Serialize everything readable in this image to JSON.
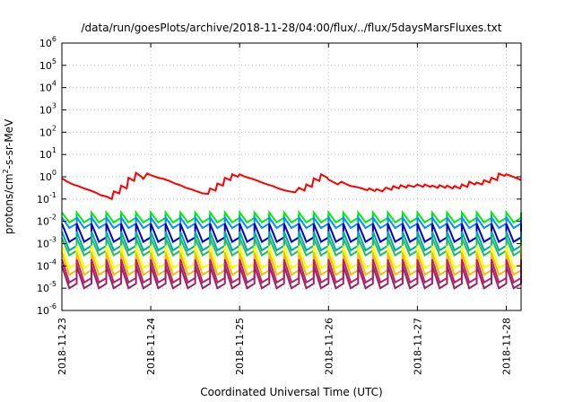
{
  "chart_data": {
    "type": "line",
    "title": "/data/run/goesPlots/archive/2018-11-28/04:00/flux/../flux/5daysMarsFluxes.txt",
    "xlabel": "Coordinated Universal Time (UTC)",
    "ylabel": {
      "prefix": "protons/cm",
      "superscript": "2",
      "suffix": "-s-sr-MeV"
    },
    "yscale": "log",
    "ylim_exponents": [
      -6,
      6
    ],
    "y_tick_labels": [
      {
        "base": "10",
        "exp": "-6"
      },
      {
        "base": "10",
        "exp": "-5"
      },
      {
        "base": "10",
        "exp": "-4"
      },
      {
        "base": "10",
        "exp": "-3"
      },
      {
        "base": "10",
        "exp": "-2"
      },
      {
        "base": "10",
        "exp": "-1"
      },
      {
        "base": "10",
        "exp": "0"
      },
      {
        "base": "10",
        "exp": "1"
      },
      {
        "base": "10",
        "exp": "2"
      },
      {
        "base": "10",
        "exp": "3"
      },
      {
        "base": "10",
        "exp": "4"
      },
      {
        "base": "10",
        "exp": "5"
      },
      {
        "base": "10",
        "exp": "6"
      }
    ],
    "xlim_days": [
      "2018-11-23 00:00",
      "2018-11-28 04:00"
    ],
    "x_tick_labels": [
      "2018-11-23",
      "2018-11-24",
      "2018-11-25",
      "2018-11-26",
      "2018-11-27",
      "2018-11-28"
    ],
    "grid": true,
    "series": [
      {
        "color": "#ff0000",
        "sawtooth": false,
        "points": [
          [
            "2018-11-23 00:00",
            0.85
          ],
          [
            "2018-11-23 01:30",
            0.6
          ],
          [
            "2018-11-23 03:00",
            0.45
          ],
          [
            "2018-11-23 04:30",
            0.38
          ],
          [
            "2018-11-23 06:00",
            0.3
          ],
          [
            "2018-11-23 07:30",
            0.25
          ],
          [
            "2018-11-23 09:00",
            0.2
          ],
          [
            "2018-11-23 10:30",
            0.15
          ],
          [
            "2018-11-23 12:00",
            0.13
          ],
          [
            "2018-11-23 13:30",
            0.1
          ],
          [
            "2018-11-23 14:00",
            0.22
          ],
          [
            "2018-11-23 15:30",
            0.18
          ],
          [
            "2018-11-23 16:00",
            0.4
          ],
          [
            "2018-11-23 17:30",
            0.3
          ],
          [
            "2018-11-23 18:00",
            0.9
          ],
          [
            "2018-11-23 19:30",
            0.65
          ],
          [
            "2018-11-23 20:00",
            1.5
          ],
          [
            "2018-11-23 21:30",
            1.0
          ],
          [
            "2018-11-23 22:00",
            0.8
          ],
          [
            "2018-11-23 23:00",
            1.4
          ],
          [
            "2018-11-24 00:30",
            1.1
          ],
          [
            "2018-11-24 02:00",
            0.9
          ],
          [
            "2018-11-24 03:30",
            0.8
          ],
          [
            "2018-11-24 05:00",
            0.65
          ],
          [
            "2018-11-24 06:30",
            0.5
          ],
          [
            "2018-11-24 08:00",
            0.42
          ],
          [
            "2018-11-24 09:30",
            0.32
          ],
          [
            "2018-11-24 11:00",
            0.27
          ],
          [
            "2018-11-24 12:30",
            0.22
          ],
          [
            "2018-11-24 14:00",
            0.18
          ],
          [
            "2018-11-24 15:30",
            0.17
          ],
          [
            "2018-11-24 16:00",
            0.3
          ],
          [
            "2018-11-24 17:30",
            0.24
          ],
          [
            "2018-11-24 18:00",
            0.5
          ],
          [
            "2018-11-24 19:30",
            0.4
          ],
          [
            "2018-11-24 20:00",
            0.9
          ],
          [
            "2018-11-24 21:30",
            0.7
          ],
          [
            "2018-11-24 22:00",
            1.3
          ],
          [
            "2018-11-24 23:30",
            1.0
          ],
          [
            "2018-11-25 00:00",
            1.3
          ],
          [
            "2018-11-25 01:30",
            1.0
          ],
          [
            "2018-11-25 03:00",
            0.85
          ],
          [
            "2018-11-25 04:30",
            0.7
          ],
          [
            "2018-11-25 06:00",
            0.55
          ],
          [
            "2018-11-25 07:30",
            0.45
          ],
          [
            "2018-11-25 09:00",
            0.38
          ],
          [
            "2018-11-25 10:30",
            0.3
          ],
          [
            "2018-11-25 12:00",
            0.25
          ],
          [
            "2018-11-25 13:30",
            0.22
          ],
          [
            "2018-11-25 15:00",
            0.2
          ],
          [
            "2018-11-25 16:00",
            0.32
          ],
          [
            "2018-11-25 17:30",
            0.24
          ],
          [
            "2018-11-25 18:00",
            0.45
          ],
          [
            "2018-11-25 19:30",
            0.35
          ],
          [
            "2018-11-25 20:00",
            0.85
          ],
          [
            "2018-11-25 21:30",
            0.65
          ],
          [
            "2018-11-25 22:00",
            1.3
          ],
          [
            "2018-11-25 23:30",
            0.95
          ],
          [
            "2018-11-26 00:00",
            0.75
          ],
          [
            "2018-11-26 01:30",
            0.55
          ],
          [
            "2018-11-26 02:30",
            0.45
          ],
          [
            "2018-11-26 03:30",
            0.6
          ],
          [
            "2018-11-26 05:00",
            0.45
          ],
          [
            "2018-11-26 06:00",
            0.38
          ],
          [
            "2018-11-26 07:30",
            0.35
          ],
          [
            "2018-11-26 09:00",
            0.3
          ],
          [
            "2018-11-26 10:30",
            0.25
          ],
          [
            "2018-11-26 11:00",
            0.3
          ],
          [
            "2018-11-26 12:30",
            0.23
          ],
          [
            "2018-11-26 13:00",
            0.28
          ],
          [
            "2018-11-26 14:30",
            0.22
          ],
          [
            "2018-11-26 15:30",
            0.33
          ],
          [
            "2018-11-26 17:00",
            0.26
          ],
          [
            "2018-11-26 17:30",
            0.38
          ],
          [
            "2018-11-26 19:00",
            0.3
          ],
          [
            "2018-11-26 19:30",
            0.42
          ],
          [
            "2018-11-26 21:00",
            0.33
          ],
          [
            "2018-11-26 21:30",
            0.42
          ],
          [
            "2018-11-26 23:00",
            0.35
          ],
          [
            "2018-11-27 00:00",
            0.45
          ],
          [
            "2018-11-27 01:30",
            0.35
          ],
          [
            "2018-11-27 02:00",
            0.45
          ],
          [
            "2018-11-27 03:30",
            0.35
          ],
          [
            "2018-11-27 04:00",
            0.4
          ],
          [
            "2018-11-27 05:30",
            0.32
          ],
          [
            "2018-11-27 06:00",
            0.42
          ],
          [
            "2018-11-27 07:30",
            0.32
          ],
          [
            "2018-11-27 08:00",
            0.4
          ],
          [
            "2018-11-27 09:30",
            0.3
          ],
          [
            "2018-11-27 10:00",
            0.38
          ],
          [
            "2018-11-27 11:30",
            0.3
          ],
          [
            "2018-11-27 12:00",
            0.45
          ],
          [
            "2018-11-27 13:30",
            0.35
          ],
          [
            "2018-11-27 14:00",
            0.6
          ],
          [
            "2018-11-27 15:30",
            0.45
          ],
          [
            "2018-11-27 16:00",
            0.55
          ],
          [
            "2018-11-27 17:30",
            0.45
          ],
          [
            "2018-11-27 18:00",
            0.7
          ],
          [
            "2018-11-27 19:30",
            0.55
          ],
          [
            "2018-11-27 20:00",
            0.9
          ],
          [
            "2018-11-27 21:30",
            0.7
          ],
          [
            "2018-11-27 22:00",
            1.4
          ],
          [
            "2018-11-27 23:30",
            1.1
          ],
          [
            "2018-11-28 00:00",
            1.3
          ],
          [
            "2018-11-28 01:30",
            1.05
          ],
          [
            "2018-11-28 03:00",
            0.85
          ],
          [
            "2018-11-28 04:00",
            0.7
          ]
        ]
      },
      {
        "color": "#00ee00",
        "sawtooth": true,
        "period_hours": 4,
        "peak": 0.025,
        "trough": 0.009
      },
      {
        "color": "#0090ff",
        "sawtooth": true,
        "period_hours": 4,
        "peak": 0.015,
        "trough": 0.005
      },
      {
        "color": "#0000cc",
        "sawtooth": true,
        "period_hours": 4,
        "peak": 0.008,
        "trough": 0.0012
      },
      {
        "color": "#00aaaa",
        "sawtooth": true,
        "period_hours": 4,
        "peak": 0.0035,
        "trough": 0.0005
      },
      {
        "color": "#22bb66",
        "sawtooth": true,
        "period_hours": 4,
        "peak": 0.0018,
        "trough": 0.0003
      },
      {
        "color": "#ffff00",
        "sawtooth": true,
        "period_hours": 4,
        "peak": 0.0008,
        "trough": 8e-05
      },
      {
        "color": "#f0c000",
        "sawtooth": true,
        "period_hours": 4,
        "peak": 0.0004,
        "trough": 4e-05
      },
      {
        "color": "#c0206a",
        "sawtooth": true,
        "period_hours": 4,
        "peak": 0.0002,
        "trough": 1.8e-05
      },
      {
        "color": "#992266",
        "sawtooth": true,
        "period_hours": 4,
        "peak": 0.0001,
        "trough": 1e-05
      }
    ]
  }
}
